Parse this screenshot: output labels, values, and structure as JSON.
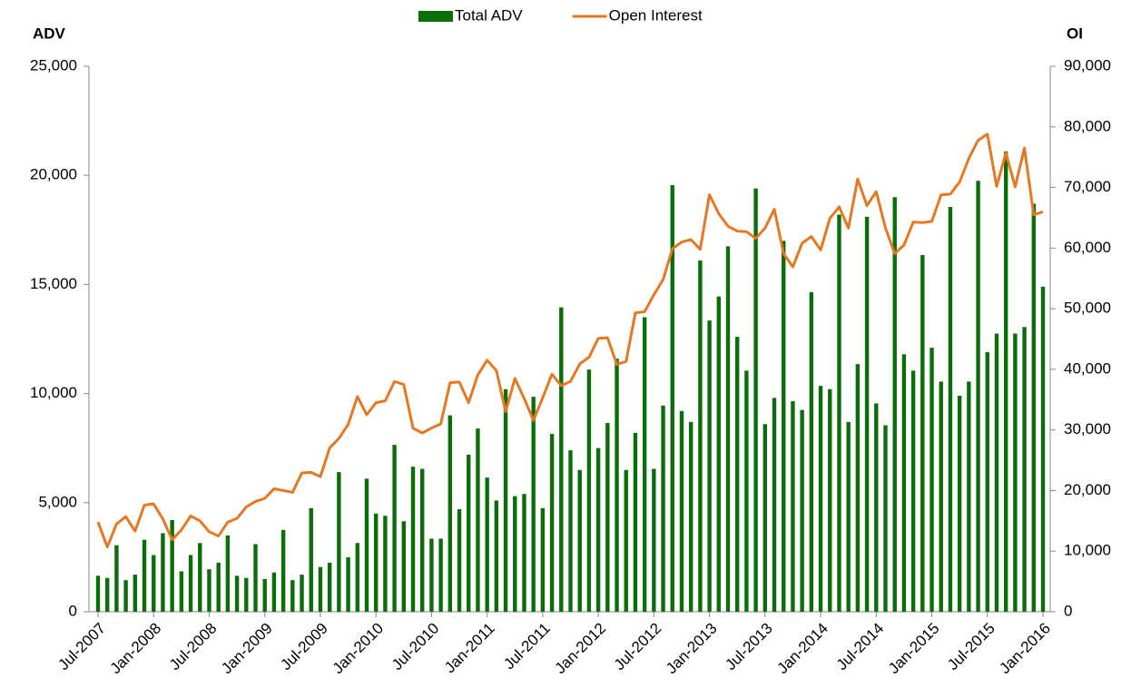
{
  "chart_data": {
    "type": "bar_line",
    "y_label": "ADV",
    "y2_label": "OI",
    "categories": [
      "Jul-2007",
      null,
      null,
      null,
      null,
      null,
      "Jan-2008",
      null,
      null,
      null,
      null,
      null,
      "Jul-2008",
      null,
      null,
      null,
      null,
      null,
      "Jan-2009",
      null,
      null,
      null,
      null,
      null,
      "Jul-2009",
      null,
      null,
      null,
      null,
      null,
      "Jan-2010",
      null,
      null,
      null,
      null,
      null,
      "Jul-2010",
      null,
      null,
      null,
      null,
      null,
      "Jan-2011",
      null,
      null,
      null,
      null,
      null,
      "Jul-2011",
      null,
      null,
      null,
      null,
      null,
      "Jan-2012",
      null,
      null,
      null,
      null,
      null,
      "Jul-2012",
      null,
      null,
      null,
      null,
      null,
      "Jan-2013",
      null,
      null,
      null,
      null,
      null,
      "Jul-2013",
      null,
      null,
      null,
      null,
      null,
      "Jan-2014",
      null,
      null,
      null,
      null,
      null,
      "Jul-2014",
      null,
      null,
      null,
      null,
      null,
      "Jan-2015",
      null,
      null,
      null,
      null,
      null,
      "Jul-2015",
      null,
      null,
      null,
      null,
      null,
      "Jan-2016"
    ],
    "series": [
      {
        "name": "Total ADV",
        "color": "#0b6e0b",
        "kind": "bar",
        "values": [
          1650,
          1550,
          3050,
          1450,
          1700,
          3300,
          2600,
          3600,
          4200,
          1850,
          2600,
          3150,
          1950,
          2250,
          3500,
          1650,
          1550,
          3100,
          1500,
          1800,
          3750,
          1450,
          1700,
          4750,
          2050,
          2250,
          6400,
          2500,
          3150,
          6100,
          4500,
          4400,
          7650,
          4150,
          6650,
          6550,
          3350,
          3350,
          9000,
          4700,
          7200,
          8400,
          6150,
          5100,
          10200,
          5300,
          5400,
          9850,
          4750,
          8150,
          13950,
          7400,
          6500,
          11100,
          7500,
          8650,
          11600,
          6500,
          8200,
          13500,
          6550,
          9450,
          19550,
          9200,
          8700,
          16100,
          13350,
          14450,
          16750,
          12600,
          11050,
          19400,
          8600,
          9800,
          17000,
          9650,
          9250,
          14650,
          10350,
          10200,
          18200,
          8700,
          11350,
          18100,
          9550,
          8550,
          19000,
          11800,
          11050,
          16350,
          12100,
          10550,
          18550,
          9900,
          10550,
          19750,
          11900,
          12750,
          21100,
          12750,
          13050,
          18700,
          14900
        ]
      },
      {
        "name": "Open Interest",
        "color": "#e87722",
        "kind": "line",
        "axis": "y2",
        "values": [
          14800,
          10700,
          14500,
          15700,
          13300,
          17600,
          17800,
          15300,
          11900,
          13500,
          15800,
          15000,
          13200,
          12500,
          14800,
          15400,
          17300,
          18200,
          18700,
          20300,
          20000,
          19700,
          22900,
          23000,
          22300,
          27000,
          28600,
          30900,
          35500,
          32500,
          34500,
          34800,
          38000,
          37500,
          30300,
          29500,
          30300,
          31000,
          37800,
          37900,
          34500,
          39100,
          41500,
          39800,
          33000,
          38500,
          35200,
          31600,
          35300,
          39200,
          37300,
          38000,
          40900,
          42000,
          45100,
          45200,
          40800,
          41300,
          49300,
          49500,
          52300,
          54800,
          59900,
          61000,
          61400,
          59800,
          68800,
          65700,
          63600,
          62800,
          62700,
          61600,
          63300,
          66400,
          59100,
          56900,
          60800,
          61900,
          59700,
          64900,
          66800,
          63300,
          71400,
          67000,
          69300,
          63300,
          59100,
          60500,
          64300,
          64200,
          64400,
          68800,
          68900,
          70900,
          74800,
          77800,
          78800,
          70200,
          75700,
          70100,
          76500,
          65500,
          66000
        ]
      }
    ],
    "ylim": [
      0,
      25000
    ],
    "yticks": [
      0,
      {
        "value": 5000,
        "label": "5,000"
      },
      {
        "value": 10000,
        "label": "10,000"
      },
      {
        "value": 15000,
        "label": "15,000"
      },
      {
        "value": 20000,
        "label": "20,000"
      },
      {
        "value": 25000,
        "label": "25,000"
      }
    ],
    "y2lim": [
      0,
      90000
    ],
    "y2ticks": [
      0,
      {
        "value": 10000,
        "label": "10,000"
      },
      {
        "value": 20000,
        "label": "20,000"
      },
      {
        "value": 30000,
        "label": "30,000"
      },
      {
        "value": 40000,
        "label": "40,000"
      },
      {
        "value": 50000,
        "label": "50,000"
      },
      {
        "value": 60000,
        "label": "60,000"
      },
      {
        "value": 70000,
        "label": "70,000"
      },
      {
        "value": 80000,
        "label": "80,000"
      },
      {
        "value": 90000,
        "label": "90,000"
      }
    ],
    "legend": "top"
  }
}
